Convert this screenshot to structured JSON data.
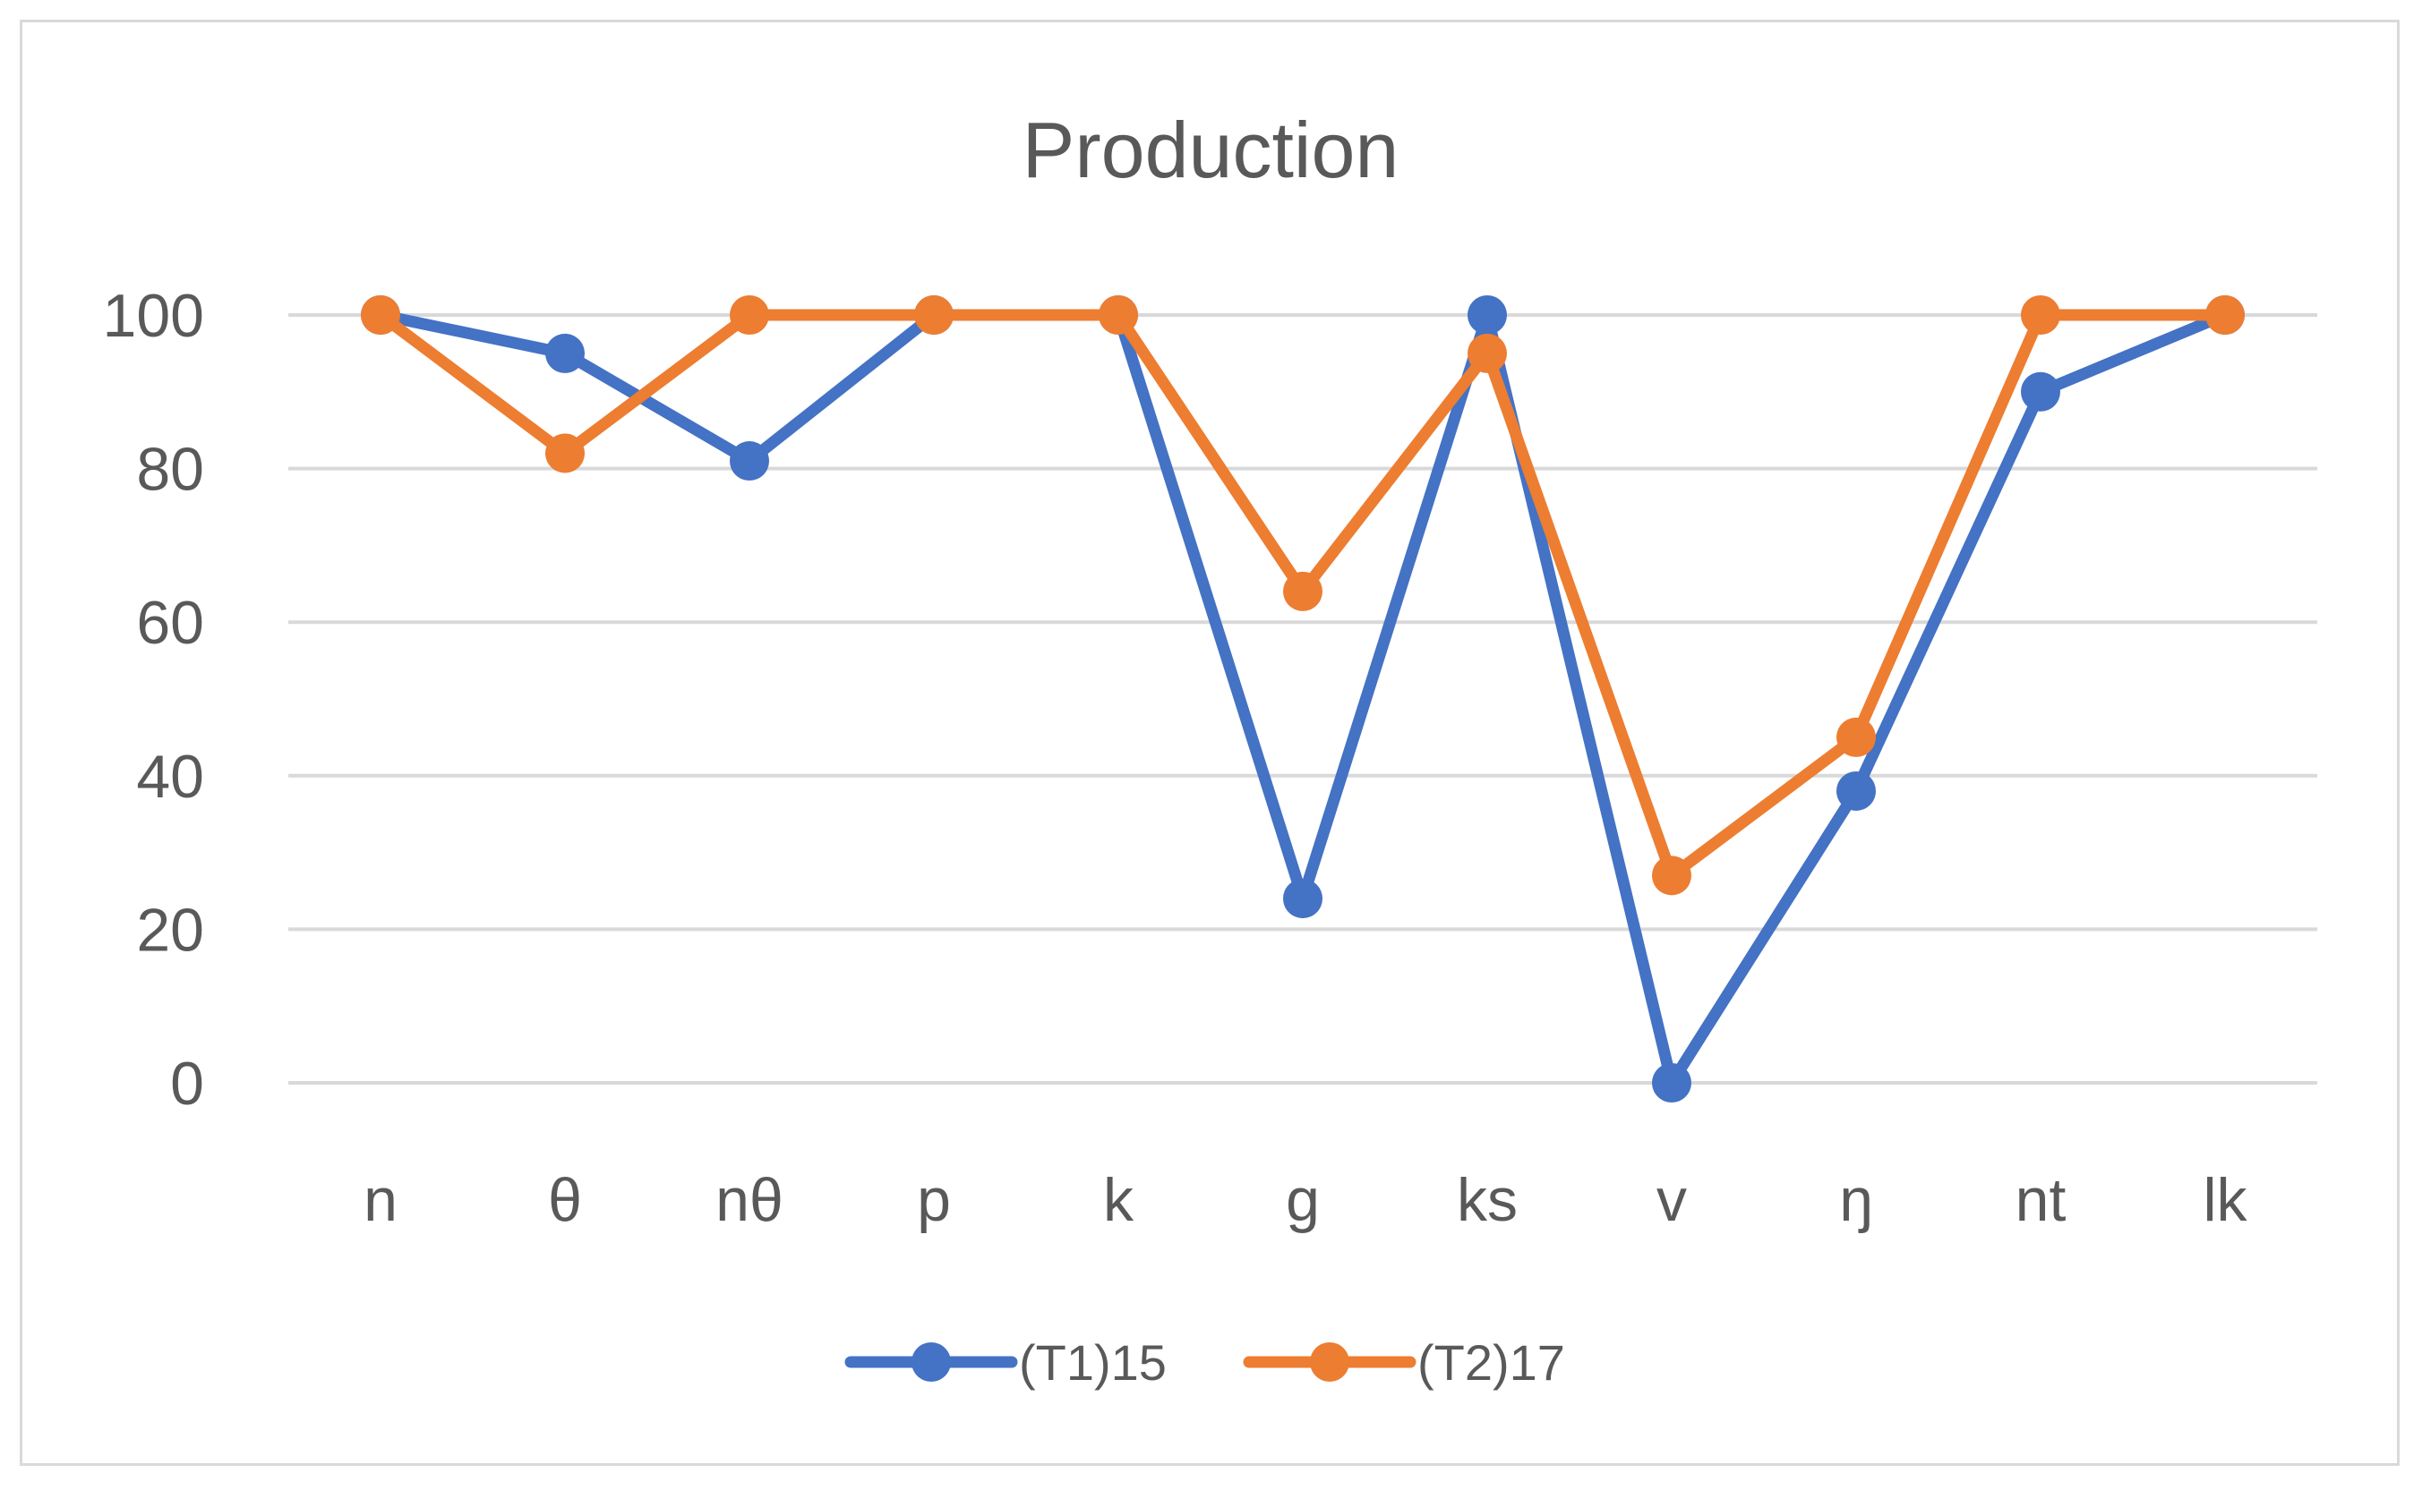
{
  "chart_data": {
    "type": "line",
    "title": "Production",
    "xlabel": "",
    "ylabel": "",
    "categories": [
      "n",
      "θ",
      "nθ",
      "p",
      "k",
      "g",
      "ks",
      "v",
      "ŋ",
      "nt",
      "lk"
    ],
    "ylim": [
      0,
      100
    ],
    "yticks": [
      "0",
      "20",
      "40",
      "60",
      "80",
      "100"
    ],
    "grid": true,
    "legend_position": "bottom",
    "series": [
      {
        "name": "(T1)15",
        "color": "#4472c4",
        "values": [
          100,
          95,
          81,
          100,
          100,
          24,
          100,
          0,
          38,
          90,
          100
        ]
      },
      {
        "name": "(T2)17",
        "color": "#ed7d31",
        "values": [
          100,
          82,
          100,
          100,
          100,
          64,
          95,
          27,
          45,
          100,
          100
        ]
      }
    ]
  }
}
